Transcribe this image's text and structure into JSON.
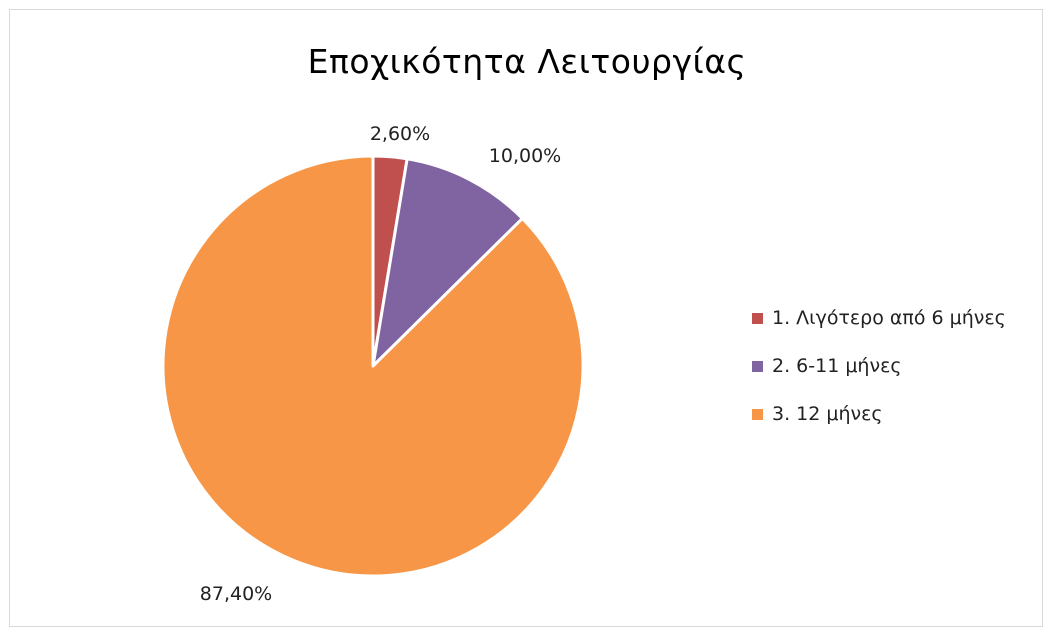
{
  "chart_data": {
    "type": "pie",
    "title": "Εποχικότητα Λειτουργίας",
    "categories": [
      "1. Λιγότερο από 6 μήνες",
      "2. 6-11 μήνες",
      "3. 12 μήνες"
    ],
    "values": [
      2.6,
      10.0,
      87.4
    ],
    "data_labels": [
      "2,60%",
      "10,00%",
      "87,40%"
    ],
    "colors": [
      "#c0504d",
      "#8064a2",
      "#f79646"
    ],
    "legend_position": "right"
  }
}
